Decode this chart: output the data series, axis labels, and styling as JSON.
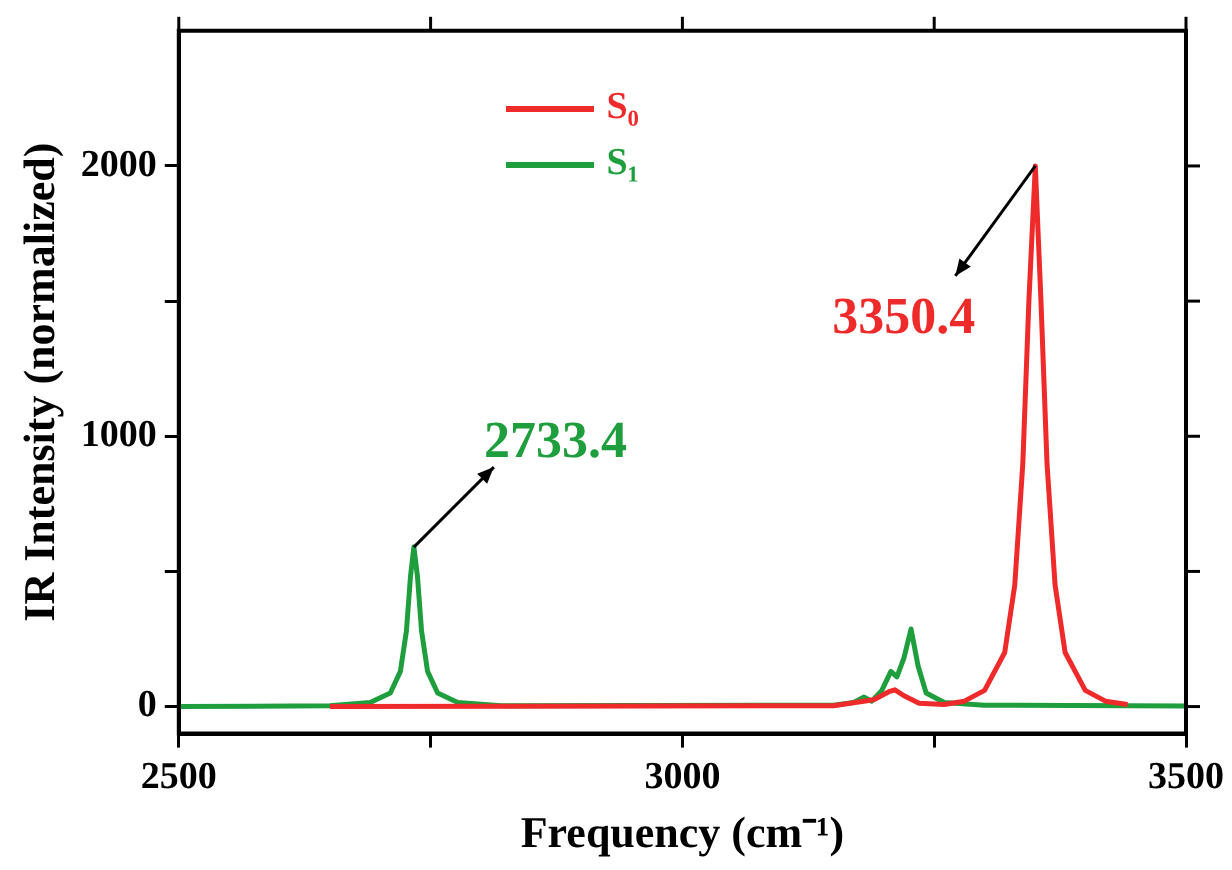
{
  "chart_data": {
    "type": "line",
    "xlabel": "Frequency (cm⁻¹)",
    "ylabel": "IR Intensity (normalized)",
    "xlim": [
      2500,
      3500
    ],
    "xticks": [
      2500,
      {
        "value": 2750,
        "label": null
      },
      3000,
      {
        "value": 3250,
        "label": null
      },
      3500
    ],
    "ylim": [
      -100,
      2500
    ],
    "yticks": [
      0,
      {
        "value": 500,
        "label": null
      },
      1000,
      {
        "value": 1500,
        "label": null
      },
      2000
    ],
    "legend": "top",
    "grid": false,
    "marker": "none",
    "line_style": "solid",
    "series": [
      {
        "name": "S₀",
        "color": "#ee2a2a",
        "x": [
          2650,
          3150,
          3190,
          3205,
          3211,
          3220,
          3235,
          3260,
          3280,
          3300,
          3320,
          3330,
          3338,
          3344,
          3350.4,
          3356,
          3362,
          3370,
          3380,
          3400,
          3420,
          3442
        ],
        "values": [
          0,
          3,
          25,
          55,
          62,
          40,
          12,
          8,
          20,
          60,
          200,
          450,
          900,
          1500,
          2000,
          1500,
          900,
          450,
          200,
          60,
          20,
          8
        ]
      },
      {
        "name": "S₁",
        "color": "#1e9e3c",
        "x": [
          2500,
          2650,
          2690,
          2710,
          2720,
          2726,
          2730,
          2733.4,
          2737,
          2741,
          2747,
          2757,
          2777,
          2820,
          3150,
          3170,
          3180,
          3188,
          3198,
          3207,
          3213,
          3220,
          3227,
          3234,
          3242,
          3260,
          3300,
          3500
        ],
        "values": [
          0,
          3,
          15,
          50,
          130,
          280,
          480,
          590,
          480,
          280,
          130,
          50,
          15,
          3,
          5,
          15,
          35,
          20,
          60,
          130,
          110,
          180,
          287,
          150,
          50,
          15,
          5,
          2
        ]
      }
    ],
    "annotations": [
      {
        "text": "2733.4",
        "x": 2733.4,
        "y": 590
      },
      {
        "text": "3350.4",
        "x": 3350.4,
        "y": 2000
      }
    ]
  }
}
